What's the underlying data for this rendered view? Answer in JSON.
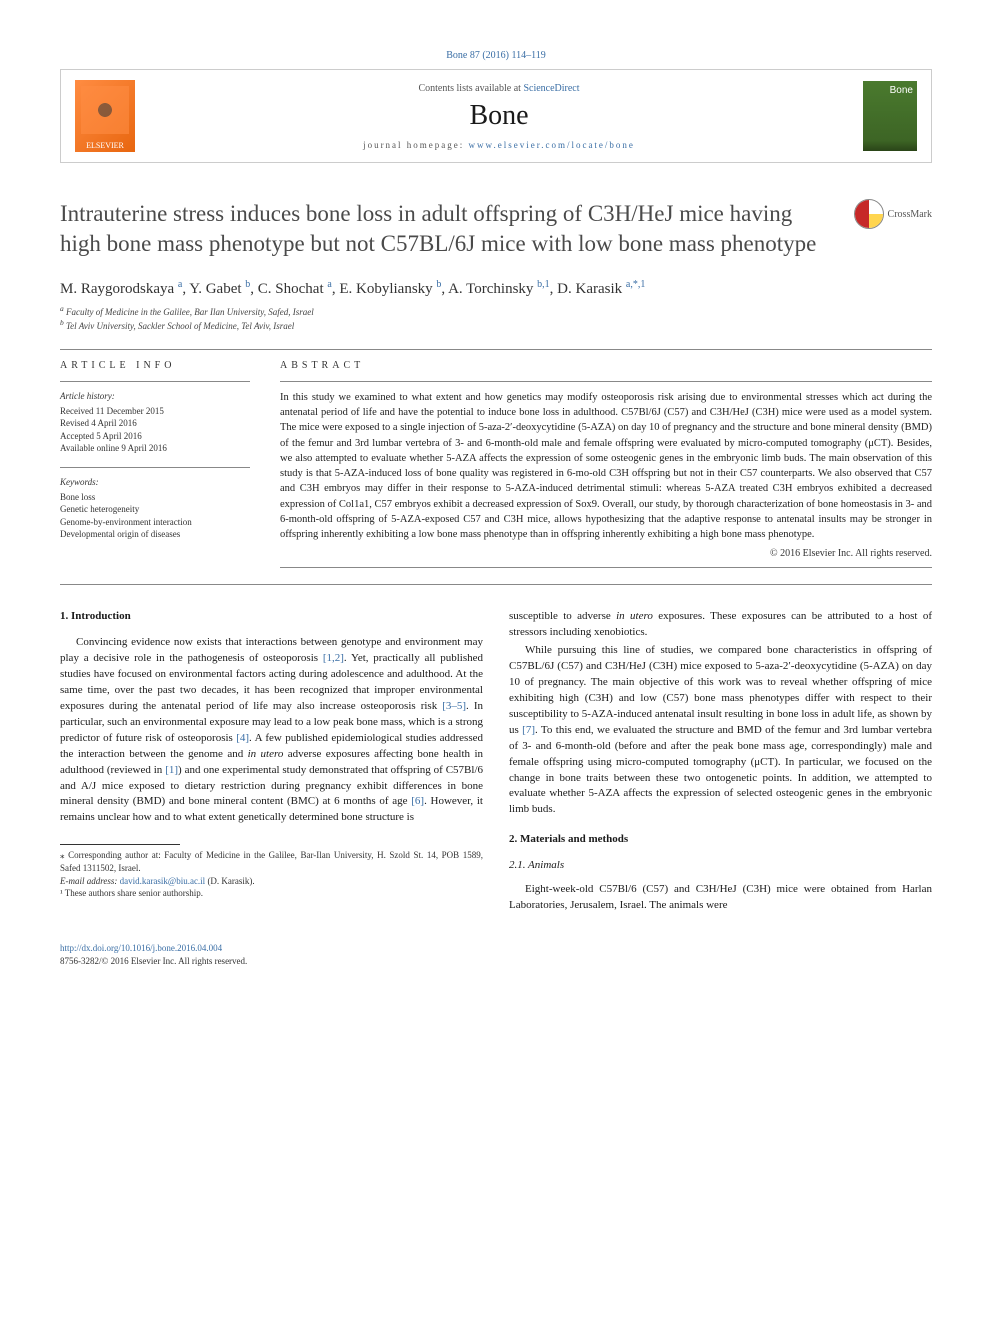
{
  "top_link": "Bone 87 (2016) 114–119",
  "header": {
    "contents_prefix": "Contents lists available at ",
    "contents_link": "ScienceDirect",
    "journal": "Bone",
    "homepage_prefix": "journal homepage: ",
    "homepage_url": "www.elsevier.com/locate/bone",
    "elsevier": "ELSEVIER"
  },
  "crossmark": "CrossMark",
  "title": "Intrauterine stress induces bone loss in adult offspring of C3H/HeJ mice having high bone mass phenotype but not C57BL/6J mice with low bone mass phenotype",
  "authors_html": "M. Raygorodskaya <sup>a</sup>, Y. Gabet <sup>b</sup>, C. Shochat <sup>a</sup>, E. Kobyliansky <sup>b</sup>, A. Torchinsky <sup>b,1</sup>, D. Karasik <sup>a,*,1</sup>",
  "affiliations": {
    "a": "Faculty of Medicine in the Galilee, Bar Ilan University, Safed, Israel",
    "b": "Tel Aviv University, Sackler School of Medicine, Tel Aviv, Israel"
  },
  "article_info": {
    "heading": "ARTICLE INFO",
    "history_label": "Article history:",
    "received": "Received 11 December 2015",
    "revised": "Revised 4 April 2016",
    "accepted": "Accepted 5 April 2016",
    "available": "Available online 9 April 2016",
    "keywords_label": "Keywords:",
    "keywords": [
      "Bone loss",
      "Genetic heterogeneity",
      "Genome-by-environment interaction",
      "Developmental origin of diseases"
    ]
  },
  "abstract": {
    "heading": "ABSTRACT",
    "text": "In this study we examined to what extent and how genetics may modify osteoporosis risk arising due to environmental stresses which act during the antenatal period of life and have the potential to induce bone loss in adulthood. C57Bl/6J (C57) and C3H/HeJ (C3H) mice were used as a model system. The mice were exposed to a single injection of 5-aza-2′-deoxycytidine (5-AZA) on day 10 of pregnancy and the structure and bone mineral density (BMD) of the femur and 3rd lumbar vertebra of 3- and 6-month-old male and female offspring were evaluated by micro-computed tomography (μCT). Besides, we also attempted to evaluate whether 5-AZA affects the expression of some osteogenic genes in the embryonic limb buds. The main observation of this study is that 5-AZA-induced loss of bone quality was registered in 6-mo-old C3H offspring but not in their C57 counterparts. We also observed that C57 and C3H embryos may differ in their response to 5-AZA-induced detrimental stimuli: whereas 5-AZA treated C3H embryos exhibited a decreased expression of Col1a1, C57 embryos exhibit a decreased expression of Sox9. Overall, our study, by thorough characterization of bone homeostasis in 3- and 6-month-old offspring of 5-AZA-exposed C57 and C3H mice, allows hypothesizing that the adaptive response to antenatal insults may be stronger in offspring inherently exhibiting a low bone mass phenotype than in offspring inherently exhibiting a high bone mass phenotype.",
    "copyright": "© 2016 Elsevier Inc. All rights reserved."
  },
  "sections": {
    "intro_heading": "1. Introduction",
    "intro_p1": "Convincing evidence now exists that interactions between genotype and environment may play a decisive role in the pathogenesis of osteoporosis [1,2]. Yet, practically all published studies have focused on environmental factors acting during adolescence and adulthood. At the same time, over the past two decades, it has been recognized that improper environmental exposures during the antenatal period of life may also increase osteoporosis risk [3–5]. In particular, such an environmental exposure may lead to a low peak bone mass, which is a strong predictor of future risk of osteoporosis [4]. A few published epidemiological studies addressed the interaction between the genome and in utero adverse exposures affecting bone health in adulthood (reviewed in [1]) and one experimental study demonstrated that offspring of C57Bl/6 and A/J mice exposed to dietary restriction during pregnancy exhibit differences in bone mineral density (BMD) and bone mineral content (BMC) at 6 months of age [6]. However, it remains unclear how and to what extent genetically determined bone structure is",
    "intro_p2": "susceptible to adverse in utero exposures. These exposures can be attributed to a host of stressors including xenobiotics.",
    "intro_p3": "While pursuing this line of studies, we compared bone characteristics in offspring of C57BL/6J (C57) and C3H/HeJ (C3H) mice exposed to 5-aza-2′-deoxycytidine (5-AZA) on day 10 of pregnancy. The main objective of this work was to reveal whether offspring of mice exhibiting high (C3H) and low (C57) bone mass phenotypes differ with respect to their susceptibility to 5-AZA-induced antenatal insult resulting in bone loss in adult life, as shown by us [7]. To this end, we evaluated the structure and BMD of the femur and 3rd lumbar vertebra of 3- and 6-month-old (before and after the peak bone mass age, correspondingly) male and female offspring using micro-computed tomography (μCT). In particular, we focused on the change in bone traits between these two ontogenetic points. In addition, we attempted to evaluate whether 5-AZA affects the expression of selected osteogenic genes in the embryonic limb buds.",
    "mm_heading": "2. Materials and methods",
    "animals_heading": "2.1. Animals",
    "animals_p1": "Eight-week-old C57Bl/6 (C57) and C3H/HeJ (C3H) mice were obtained from Harlan Laboratories, Jerusalem, Israel. The animals were"
  },
  "footnotes": {
    "corresponding": "⁎ Corresponding author at: Faculty of Medicine in the Galilee, Bar-Ilan University, H. Szold St. 14, POB 1589, Safed 1311502, Israel.",
    "email_label": "E-mail address: ",
    "email": "david.karasik@biu.ac.il",
    "email_who": " (D. Karasik).",
    "senior": "¹ These authors share senior authorship."
  },
  "footer": {
    "doi": "http://dx.doi.org/10.1016/j.bone.2016.04.004",
    "issn": "8756-3282/© 2016 Elsevier Inc. All rights reserved."
  },
  "colors": {
    "link": "#3a6ea5",
    "rule": "#888888",
    "elsevier_orange": "#ff8c42",
    "cover_green": "#4a7a2e"
  }
}
